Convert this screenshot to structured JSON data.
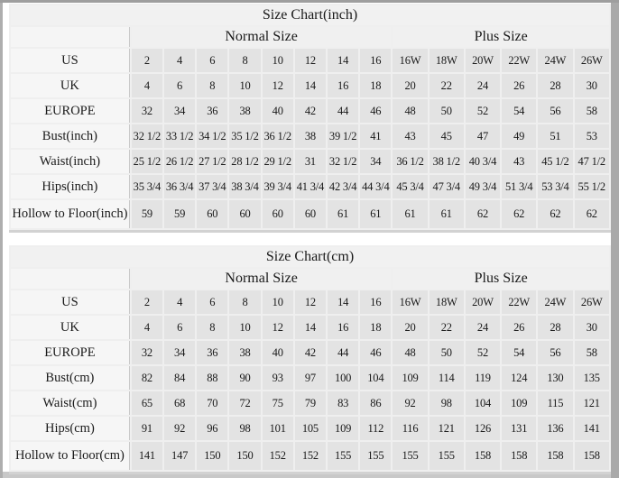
{
  "colors": {
    "page_background": "#ffffff",
    "data_cell_background": "#e3e3e3",
    "label_cell_background": "#f6f6f6",
    "header_background": "#f0f0f0",
    "grid_line": "#efefef",
    "edge_strip": "#a9a9a9",
    "text": "#1a1a1a"
  },
  "tables": [
    {
      "id": "inch",
      "title": "Size Chart(inch)",
      "normal_header": "Normal Size",
      "plus_header": "Plus Size",
      "rows": [
        {
          "label": "US",
          "normal": [
            "2",
            "4",
            "6",
            "8",
            "10",
            "12",
            "14",
            "16"
          ],
          "plus": [
            "16W",
            "18W",
            "20W",
            "22W",
            "24W",
            "26W"
          ]
        },
        {
          "label": "UK",
          "normal": [
            "4",
            "6",
            "8",
            "10",
            "12",
            "14",
            "16",
            "18"
          ],
          "plus": [
            "20",
            "22",
            "24",
            "26",
            "28",
            "30"
          ]
        },
        {
          "label": "EUROPE",
          "normal": [
            "32",
            "34",
            "36",
            "38",
            "40",
            "42",
            "44",
            "46"
          ],
          "plus": [
            "48",
            "50",
            "52",
            "54",
            "56",
            "58"
          ]
        },
        {
          "label": "Bust(inch)",
          "normal": [
            "32 1/2",
            "33 1/2",
            "34 1/2",
            "35 1/2",
            "36 1/2",
            "38",
            "39 1/2",
            "41"
          ],
          "plus": [
            "43",
            "45",
            "47",
            "49",
            "51",
            "53"
          ]
        },
        {
          "label": "Waist(inch)",
          "normal": [
            "25 1/2",
            "26 1/2",
            "27 1/2",
            "28 1/2",
            "29 1/2",
            "31",
            "32 1/2",
            "34"
          ],
          "plus": [
            "36 1/2",
            "38 1/2",
            "40 3/4",
            "43",
            "45 1/2",
            "47 1/2"
          ]
        },
        {
          "label": "Hips(inch)",
          "normal": [
            "35 3/4",
            "36 3/4",
            "37 3/4",
            "38 3/4",
            "39 3/4",
            "41 3/4",
            "42 3/4",
            "44 3/4"
          ],
          "plus": [
            "45 3/4",
            "47 3/4",
            "49 3/4",
            "51 3/4",
            "53 3/4",
            "55 1/2"
          ]
        },
        {
          "label": "Hollow to Floor(inch)",
          "tall": true,
          "normal": [
            "59",
            "59",
            "60",
            "60",
            "60",
            "60",
            "61",
            "61"
          ],
          "plus": [
            "61",
            "61",
            "62",
            "62",
            "62",
            "62"
          ]
        }
      ]
    },
    {
      "id": "cm",
      "title": "Size Chart(cm)",
      "normal_header": "Normal Size",
      "plus_header": "Plus Size",
      "rows": [
        {
          "label": "US",
          "normal": [
            "2",
            "4",
            "6",
            "8",
            "10",
            "12",
            "14",
            "16"
          ],
          "plus": [
            "16W",
            "18W",
            "20W",
            "22W",
            "24W",
            "26W"
          ]
        },
        {
          "label": "UK",
          "normal": [
            "4",
            "6",
            "8",
            "10",
            "12",
            "14",
            "16",
            "18"
          ],
          "plus": [
            "20",
            "22",
            "24",
            "26",
            "28",
            "30"
          ]
        },
        {
          "label": "EUROPE",
          "normal": [
            "32",
            "34",
            "36",
            "38",
            "40",
            "42",
            "44",
            "46"
          ],
          "plus": [
            "48",
            "50",
            "52",
            "54",
            "56",
            "58"
          ]
        },
        {
          "label": "Bust(cm)",
          "normal": [
            "82",
            "84",
            "88",
            "90",
            "93",
            "97",
            "100",
            "104"
          ],
          "plus": [
            "109",
            "114",
            "119",
            "124",
            "130",
            "135"
          ]
        },
        {
          "label": "Waist(cm)",
          "normal": [
            "65",
            "68",
            "70",
            "72",
            "75",
            "79",
            "83",
            "86"
          ],
          "plus": [
            "92",
            "98",
            "104",
            "109",
            "115",
            "121"
          ]
        },
        {
          "label": "Hips(cm)",
          "normal": [
            "91",
            "92",
            "96",
            "98",
            "101",
            "105",
            "109",
            "112"
          ],
          "plus": [
            "116",
            "121",
            "126",
            "131",
            "136",
            "141"
          ]
        },
        {
          "label": "Hollow to Floor(cm)",
          "tall": true,
          "normal": [
            "141",
            "147",
            "150",
            "150",
            "152",
            "152",
            "155",
            "155"
          ],
          "plus": [
            "155",
            "155",
            "158",
            "158",
            "158",
            "158"
          ]
        }
      ]
    }
  ]
}
